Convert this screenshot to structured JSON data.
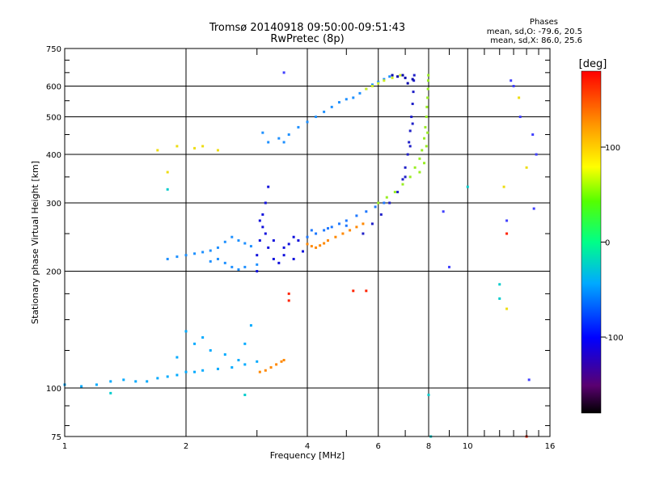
{
  "header": {
    "title_line1": "Tromsø 20140918 09:50:00-09:51:43",
    "title_line2": "RwPretec (8p)",
    "phase_title": "Phases",
    "phase_o": "mean, sd,O: -79.6, 20.5",
    "phase_x": "mean, sd,X:  86.0, 25.6"
  },
  "chart_data": {
    "type": "scatter",
    "title": "Tromsø 20140918 09:50:00-09:51:43",
    "subtitle": "RwPretec (8p)",
    "xlabel": "Frequency [MHz]",
    "ylabel": "Stationary phase Virtual Height [km]",
    "xscale": "log",
    "yscale": "log",
    "xlim": [
      1,
      16
    ],
    "ylim": [
      75,
      750
    ],
    "xticks": [
      1,
      2,
      4,
      6,
      8,
      10,
      16
    ],
    "xtick_labels": [
      "1",
      "2",
      "4",
      "6",
      "8",
      "10",
      "16"
    ],
    "yticks": [
      75,
      100,
      200,
      300,
      400,
      500,
      600,
      750
    ],
    "ytick_labels": [
      "75",
      "100",
      "200",
      "300",
      "400",
      "500",
      "600",
      "750"
    ],
    "grid": true,
    "colorbar": {
      "label": "[deg]",
      "range": [
        -180,
        180
      ],
      "ticks": [
        100,
        0,
        -100
      ],
      "tick_labels": [
        "100",
        "0",
        "-100"
      ]
    },
    "series": [
      {
        "color": "#00aaff",
        "phase_deg": -60,
        "points": [
          [
            1.0,
            102
          ],
          [
            1.1,
            101
          ],
          [
            1.2,
            102
          ],
          [
            1.3,
            104
          ],
          [
            1.4,
            105
          ],
          [
            1.5,
            104
          ],
          [
            1.6,
            104
          ],
          [
            1.7,
            106
          ],
          [
            1.8,
            107
          ],
          [
            1.9,
            108
          ],
          [
            2.0,
            110
          ],
          [
            2.1,
            110
          ],
          [
            2.2,
            111
          ],
          [
            2.4,
            112
          ],
          [
            2.6,
            113
          ],
          [
            2.8,
            115
          ],
          [
            3.0,
            117
          ],
          [
            1.9,
            120
          ],
          [
            2.1,
            130
          ],
          [
            2.3,
            125
          ],
          [
            2.5,
            122
          ],
          [
            2.7,
            118
          ],
          [
            2.0,
            140
          ],
          [
            2.2,
            135
          ],
          [
            2.8,
            130
          ],
          [
            2.9,
            145
          ]
        ]
      },
      {
        "color": "#1e90ff",
        "phase_deg": -75,
        "points": [
          [
            1.8,
            215
          ],
          [
            1.9,
            218
          ],
          [
            2.0,
            220
          ],
          [
            2.1,
            222
          ],
          [
            2.2,
            224
          ],
          [
            2.3,
            226
          ],
          [
            2.4,
            230
          ],
          [
            2.5,
            238
          ],
          [
            2.6,
            245
          ],
          [
            2.7,
            240
          ],
          [
            2.8,
            236
          ],
          [
            2.9,
            232
          ],
          [
            2.5,
            210
          ],
          [
            2.6,
            205
          ],
          [
            2.7,
            202
          ],
          [
            2.8,
            205
          ],
          [
            3.0,
            208
          ],
          [
            2.4,
            215
          ],
          [
            2.3,
            212
          ]
        ]
      },
      {
        "color": "#1010dd",
        "phase_deg": -110,
        "points": [
          [
            3.0,
            200
          ],
          [
            3.0,
            220
          ],
          [
            3.05,
            240
          ],
          [
            3.1,
            260
          ],
          [
            3.1,
            280
          ],
          [
            3.15,
            300
          ],
          [
            3.2,
            330
          ],
          [
            3.05,
            270
          ],
          [
            3.15,
            250
          ],
          [
            3.2,
            230
          ],
          [
            3.3,
            215
          ],
          [
            3.4,
            210
          ],
          [
            3.5,
            220
          ],
          [
            3.6,
            235
          ],
          [
            3.7,
            245
          ],
          [
            3.8,
            240
          ],
          [
            3.3,
            240
          ],
          [
            3.5,
            230
          ],
          [
            3.7,
            215
          ],
          [
            3.9,
            225
          ]
        ]
      },
      {
        "color": "#1e78ff",
        "phase_deg": -80,
        "points": [
          [
            4.0,
            245
          ],
          [
            4.2,
            250
          ],
          [
            4.4,
            255
          ],
          [
            4.6,
            260
          ],
          [
            4.8,
            265
          ],
          [
            5.0,
            270
          ],
          [
            5.3,
            278
          ],
          [
            5.6,
            285
          ],
          [
            5.9,
            293
          ],
          [
            6.2,
            300
          ],
          [
            4.1,
            255
          ],
          [
            4.5,
            258
          ],
          [
            5.0,
            262
          ]
        ]
      },
      {
        "color": "#ff8800",
        "phase_deg": 130,
        "points": [
          [
            4.0,
            235
          ],
          [
            4.1,
            232
          ],
          [
            4.2,
            230
          ],
          [
            4.3,
            233
          ],
          [
            4.4,
            236
          ],
          [
            4.5,
            240
          ],
          [
            4.7,
            245
          ],
          [
            4.9,
            250
          ],
          [
            5.1,
            255
          ],
          [
            5.3,
            260
          ],
          [
            5.5,
            265
          ],
          [
            3.05,
            110
          ],
          [
            3.15,
            111
          ],
          [
            3.25,
            113
          ],
          [
            3.35,
            115
          ],
          [
            3.45,
            117
          ],
          [
            3.5,
            118
          ]
        ]
      },
      {
        "color": "#99ee22",
        "phase_deg": 60,
        "points": [
          [
            6.0,
            300
          ],
          [
            6.3,
            310
          ],
          [
            6.6,
            320
          ],
          [
            6.9,
            335
          ],
          [
            7.2,
            350
          ],
          [
            7.4,
            370
          ],
          [
            7.6,
            390
          ],
          [
            7.7,
            410
          ],
          [
            7.8,
            440
          ],
          [
            7.85,
            470
          ],
          [
            7.9,
            500
          ],
          [
            7.92,
            530
          ],
          [
            7.95,
            560
          ],
          [
            7.97,
            590
          ],
          [
            7.98,
            620
          ],
          [
            7.99,
            640
          ],
          [
            7.6,
            360
          ],
          [
            7.8,
            380
          ],
          [
            7.9,
            420
          ],
          [
            7.95,
            455
          ]
        ]
      },
      {
        "color": "#2020c8",
        "phase_deg": -115,
        "points": [
          [
            5.5,
            250
          ],
          [
            5.8,
            265
          ],
          [
            6.1,
            280
          ],
          [
            6.4,
            300
          ],
          [
            6.7,
            320
          ],
          [
            6.9,
            345
          ],
          [
            7.0,
            370
          ],
          [
            7.1,
            400
          ],
          [
            7.15,
            430
          ],
          [
            7.2,
            460
          ],
          [
            7.25,
            500
          ],
          [
            7.3,
            540
          ],
          [
            7.33,
            580
          ],
          [
            7.35,
            620
          ],
          [
            7.37,
            640
          ],
          [
            7.2,
            420
          ],
          [
            7.3,
            480
          ],
          [
            7.0,
            350
          ]
        ]
      },
      {
        "color": "#1e90ff",
        "phase_deg": -75,
        "points": [
          [
            3.2,
            430
          ],
          [
            3.4,
            440
          ],
          [
            3.6,
            450
          ],
          [
            3.8,
            470
          ],
          [
            4.0,
            485
          ],
          [
            4.2,
            500
          ],
          [
            4.4,
            515
          ],
          [
            4.6,
            530
          ],
          [
            4.8,
            545
          ],
          [
            5.0,
            555
          ],
          [
            5.2,
            560
          ],
          [
            5.4,
            575
          ],
          [
            5.6,
            590
          ],
          [
            5.8,
            605
          ],
          [
            6.0,
            615
          ],
          [
            6.2,
            625
          ],
          [
            6.4,
            635
          ],
          [
            3.1,
            455
          ],
          [
            3.5,
            430
          ]
        ]
      },
      {
        "color": "#ccee22",
        "phase_deg": 70,
        "points": [
          [
            5.6,
            590
          ],
          [
            5.8,
            600
          ],
          [
            6.0,
            610
          ],
          [
            6.2,
            620
          ],
          [
            6.5,
            630
          ],
          [
            6.8,
            640
          ]
        ]
      },
      {
        "color": "#0000aa",
        "phase_deg": -130,
        "points": [
          [
            6.5,
            640
          ],
          [
            6.7,
            635
          ],
          [
            7.0,
            630
          ],
          [
            7.3,
            625
          ],
          [
            7.1,
            610
          ],
          [
            6.9,
            640
          ]
        ]
      },
      {
        "color": "#ff2200",
        "phase_deg": 160,
        "points": [
          [
            3.6,
            175
          ],
          [
            3.6,
            168
          ],
          [
            5.2,
            178
          ],
          [
            5.6,
            178
          ],
          [
            12.5,
            250
          ],
          [
            14.0,
            75
          ]
        ]
      },
      {
        "color": "#4040ff",
        "phase_deg": -105,
        "points": [
          [
            3.5,
            650
          ],
          [
            13.0,
            600
          ],
          [
            14.5,
            450
          ],
          [
            14.8,
            400
          ],
          [
            14.2,
            105
          ],
          [
            12.5,
            270
          ],
          [
            9.0,
            205
          ],
          [
            8.7,
            285
          ],
          [
            14.6,
            290
          ],
          [
            13.5,
            500
          ],
          [
            12.8,
            620
          ]
        ]
      },
      {
        "color": "#eedd11",
        "phase_deg": 90,
        "points": [
          [
            1.7,
            410
          ],
          [
            1.9,
            420
          ],
          [
            2.1,
            415
          ],
          [
            2.2,
            420
          ],
          [
            2.4,
            410
          ],
          [
            1.8,
            360
          ],
          [
            12.3,
            330
          ],
          [
            14.0,
            370
          ],
          [
            13.4,
            560
          ],
          [
            12.5,
            160
          ]
        ]
      },
      {
        "color": "#00cccc",
        "phase_deg": -30,
        "points": [
          [
            1.8,
            325
          ],
          [
            10.0,
            330
          ],
          [
            12.0,
            170
          ],
          [
            12.0,
            185
          ],
          [
            8.0,
            96
          ],
          [
            8.1,
            75
          ],
          [
            2.8,
            96
          ],
          [
            1.3,
            97
          ]
        ]
      }
    ]
  }
}
